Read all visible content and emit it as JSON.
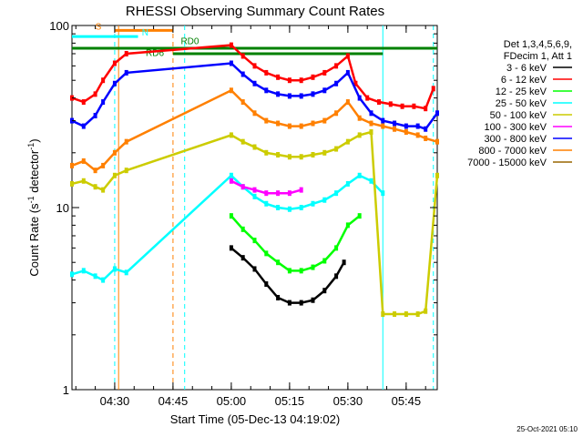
{
  "chart_data": {
    "type": "line",
    "title": "RHESSI Observing Summary Count Rates",
    "xlabel": "Start Time (05-Dec-13 04:19:02)",
    "ylabel": "Count Rate (s",
    "ylabel_sup1": "-1",
    "ylabel_mid": " detector",
    "ylabel_sup2": "-1",
    "ylabel_end": ")",
    "yscale": "log",
    "ylim": [
      1,
      100
    ],
    "xlim_minutes": [
      0,
      94
    ],
    "x_ticks": [
      {
        "label": "04:30",
        "minute": 11
      },
      {
        "label": "04:45",
        "minute": 26
      },
      {
        "label": "05:00",
        "minute": 41
      },
      {
        "label": "05:15",
        "minute": 56
      },
      {
        "label": "05:30",
        "minute": 71
      },
      {
        "label": "05:45",
        "minute": 86
      }
    ],
    "y_ticks": [
      {
        "label": "1",
        "value": 1
      },
      {
        "label": "10",
        "value": 10
      },
      {
        "label": "100",
        "value": 100
      }
    ],
    "legend_header": [
      "Det 1,3,4,5,6,9,",
      "FDecim 1, Att 1"
    ],
    "series": [
      {
        "name": "3 - 6 keV",
        "color": "#000000",
        "x": [
          41,
          44,
          47,
          50,
          53,
          56,
          59,
          62,
          65,
          68,
          70
        ],
        "y": [
          6.0,
          5.3,
          4.6,
          3.8,
          3.2,
          3.0,
          3.0,
          3.1,
          3.5,
          4.2,
          5.0
        ]
      },
      {
        "name": "6 - 12 keV",
        "color": "#ff0000",
        "x": [
          0,
          3,
          6,
          8,
          11,
          14,
          41,
          44,
          47,
          50,
          53,
          56,
          59,
          62,
          65,
          68,
          71,
          73,
          76,
          79,
          82,
          85,
          88,
          91,
          93
        ],
        "y": [
          40,
          38,
          42,
          50,
          62,
          70,
          78,
          68,
          60,
          55,
          52,
          50,
          50,
          52,
          55,
          60,
          68,
          48,
          40,
          38,
          37,
          36,
          36,
          35,
          45
        ]
      },
      {
        "name": "12 - 25 keV",
        "color": "#00ff00",
        "x": [
          41,
          44,
          47,
          50,
          53,
          56,
          59,
          62,
          65,
          68,
          71,
          74
        ],
        "y": [
          9.0,
          7.6,
          6.6,
          5.6,
          5.0,
          4.5,
          4.5,
          4.7,
          5.1,
          6.0,
          8.0,
          9.0
        ]
      },
      {
        "name": "25 - 50 keV",
        "color": "#00ffff",
        "x": [
          0,
          3,
          6,
          8,
          11,
          14,
          41,
          44,
          47,
          50,
          53,
          56,
          59,
          62,
          65,
          68,
          71,
          74,
          77,
          80
        ],
        "y": [
          4.3,
          4.5,
          4.2,
          4.0,
          4.6,
          4.4,
          15,
          13,
          11.5,
          10.5,
          10,
          9.8,
          10,
          10.5,
          11,
          12,
          13.5,
          15,
          14,
          12
        ]
      },
      {
        "name": "50 - 100 keV",
        "color": "#cccc00",
        "x": [
          0,
          3,
          6,
          8,
          11,
          14,
          41,
          44,
          47,
          50,
          53,
          56,
          59,
          62,
          65,
          68,
          71,
          74,
          77,
          80,
          83,
          86,
          89,
          91,
          94
        ],
        "y": [
          13.5,
          14,
          13,
          12.5,
          15,
          16,
          25,
          23,
          21.5,
          20,
          19.5,
          19,
          19,
          19.5,
          20,
          21,
          23,
          25,
          26,
          2.6,
          2.6,
          2.6,
          2.6,
          2.7,
          15
        ]
      },
      {
        "name": "100 - 300 keV",
        "color": "#ff00ff",
        "x": [
          41,
          44,
          47,
          50,
          53,
          56,
          59
        ],
        "y": [
          14,
          13,
          12.5,
          12,
          12,
          12,
          12.5
        ]
      },
      {
        "name": "300 - 800 keV",
        "color": "#0000ff",
        "x": [
          0,
          3,
          6,
          8,
          11,
          14,
          41,
          44,
          47,
          50,
          53,
          56,
          59,
          62,
          65,
          68,
          71,
          74,
          77,
          80,
          83,
          86,
          89,
          91,
          94
        ],
        "y": [
          30,
          28,
          32,
          38,
          48,
          55,
          62,
          54,
          48,
          44,
          42,
          41,
          41,
          42,
          44,
          48,
          55,
          40,
          33,
          30,
          29,
          28,
          28,
          27,
          33
        ]
      },
      {
        "name": "800 - 7000 keV",
        "color": "#ff8000",
        "x": [
          0,
          3,
          6,
          8,
          11,
          14,
          41,
          44,
          47,
          50,
          53,
          56,
          59,
          62,
          65,
          68,
          71,
          74,
          77,
          80,
          83,
          86,
          89,
          91,
          94
        ],
        "y": [
          17,
          18,
          16,
          17,
          20,
          23,
          44,
          38,
          33,
          30,
          29,
          28,
          28,
          29,
          30,
          33,
          38,
          31,
          29,
          28,
          27,
          26,
          25,
          24,
          23
        ]
      },
      {
        "name": "7000 - 15000 keV",
        "color": "#996600",
        "x": [],
        "y": []
      }
    ],
    "verticals": [
      {
        "minute": 12,
        "color": "#ff8000",
        "style": "solid"
      },
      {
        "minute": 26,
        "color": "#ff8000",
        "style": "dashed"
      },
      {
        "minute": 11,
        "color": "#00ffff",
        "style": "dashed"
      },
      {
        "minute": 29,
        "color": "#00ffff",
        "style": "dashed"
      },
      {
        "minute": 80,
        "color": "#00ffff",
        "style": "solid"
      },
      {
        "minute": 93,
        "color": "#00ffff",
        "style": "dashed"
      }
    ],
    "annotations": [
      {
        "label": "S",
        "color": "#ff8000",
        "x_minute": 6,
        "y_value": 95,
        "bar": [
          11,
          26
        ],
        "bar_y": 94
      },
      {
        "label": "N",
        "color": "#00ffff",
        "x_minute": 18,
        "y_value": 88,
        "bar": [
          0,
          17
        ],
        "bar_y": 87
      },
      {
        "label": "RD0",
        "color": "#008000",
        "x_minute": 28,
        "y_value": 79,
        "bar": [
          0,
          94
        ],
        "bar_y": 75
      },
      {
        "label": "RD6",
        "color": "#008000",
        "x_minute": 19,
        "y_value": 68,
        "bar": [
          26,
          80
        ],
        "bar_y": 70
      }
    ],
    "timestamp": "25-Oct-2021 05:10"
  }
}
